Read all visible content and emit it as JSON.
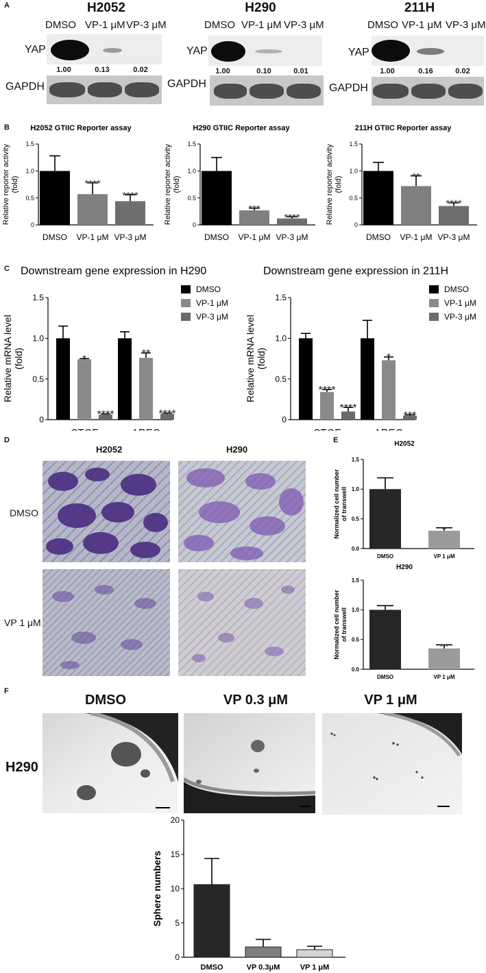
{
  "panels": {
    "A": "A",
    "B": "B",
    "C": "C",
    "D": "D",
    "E": "E",
    "F": "F"
  },
  "western_blot": {
    "blots": [
      {
        "cell_line": "H2052",
        "lanes": [
          "DMSO",
          "VP-1 μM",
          "VP-3 μM"
        ],
        "quant": [
          "1.00",
          "0.13",
          "0.02"
        ],
        "yap_levels": [
          1.0,
          0.13,
          0.02
        ]
      },
      {
        "cell_line": "H290",
        "lanes": [
          "DMSO",
          "VP-1 μM",
          "VP-3 μM"
        ],
        "quant": [
          "1.00",
          "0.10",
          "0.01"
        ],
        "yap_levels": [
          1.0,
          0.1,
          0.01
        ]
      },
      {
        "cell_line": "211H",
        "lanes": [
          "DMSO",
          "VP-1 μM",
          "VP-3 μM"
        ],
        "quant": [
          "1.00",
          "0.16",
          "0.02"
        ],
        "yap_levels": [
          1.0,
          0.16,
          0.02
        ]
      }
    ],
    "yap_label": "YAP",
    "gapdh_label": "GAPDH"
  },
  "chart_data": [
    {
      "type": "bar",
      "title": "H2052 GTIIC Reporter assay",
      "ylabel": "Relative reporter activity (fold)",
      "categories": [
        "DMSO",
        "VP-1 μM",
        "VP-3 μM"
      ],
      "values": [
        1.0,
        0.57,
        0.44
      ],
      "errors": [
        0.28,
        0.21,
        0.12
      ],
      "annotations": [
        "",
        "****",
        "****"
      ],
      "ylim": [
        0,
        1.5
      ],
      "yticks": [
        "0",
        "0.5",
        "1.0",
        "1.5"
      ],
      "colors": [
        "#000000",
        "#808080",
        "#6e6e6e"
      ]
    },
    {
      "type": "bar",
      "title": "H290 GTIIC Reporter assay",
      "ylabel": "Relative reporter activity (fold)",
      "categories": [
        "DMSO",
        "VP-1 μM",
        "VP-3 μM"
      ],
      "values": [
        1.0,
        0.27,
        0.12
      ],
      "errors": [
        0.25,
        0.04,
        0.03
      ],
      "annotations": [
        "",
        "***",
        "****"
      ],
      "ylim": [
        0,
        1.5
      ],
      "yticks": [
        "0",
        "0.5",
        "1.0",
        "1.5"
      ],
      "colors": [
        "#000000",
        "#808080",
        "#6e6e6e"
      ]
    },
    {
      "type": "bar",
      "title": "211H GTIIC Reporter assay",
      "ylabel": "Relative reporter activity (fold)",
      "categories": [
        "DMSO",
        "VP-1 μM",
        "VP-3 μM"
      ],
      "values": [
        1.0,
        0.72,
        0.35
      ],
      "errors": [
        0.16,
        0.19,
        0.06
      ],
      "annotations": [
        "",
        "**",
        "****"
      ],
      "ylim": [
        0,
        1.5
      ],
      "yticks": [
        "0",
        "0.5",
        "1.0",
        "1.5"
      ],
      "colors": [
        "#000000",
        "#808080",
        "#6e6e6e"
      ]
    },
    {
      "type": "bar",
      "title": "Downstream gene expression in H290",
      "ylabel": "Relative mRNA level (fold)",
      "categories": [
        "CTGF",
        "AREG"
      ],
      "series": [
        {
          "name": "DMSO",
          "values": [
            1.0,
            1.0
          ],
          "errors": [
            0.15,
            0.08
          ],
          "annotations": [
            "",
            ""
          ],
          "color": "#000000"
        },
        {
          "name": "VP-1 μM",
          "values": [
            0.74,
            0.76
          ],
          "errors": [
            0.01,
            0.06
          ],
          "annotations": [
            "*",
            "**"
          ],
          "color": "#8a8a8a"
        },
        {
          "name": "VP-3 μM",
          "values": [
            0.06,
            0.07
          ],
          "errors": [
            0.01,
            0.01
          ],
          "annotations": [
            "****",
            "****"
          ],
          "color": "#6a6a6a"
        }
      ],
      "ylim": [
        0,
        1.5
      ],
      "yticks": [
        "0",
        "0.5",
        "1.0",
        "1.5"
      ],
      "legend": "top-right"
    },
    {
      "type": "bar",
      "title": "Downstream gene expression in 211H",
      "ylabel": "Relative mRNA level (fold)",
      "categories": [
        "CTGF",
        "AREG"
      ],
      "series": [
        {
          "name": "DMSO",
          "values": [
            1.0,
            1.0
          ],
          "errors": [
            0.06,
            0.22
          ],
          "annotations": [
            "",
            ""
          ],
          "color": "#000000"
        },
        {
          "name": "VP-1 μM",
          "values": [
            0.34,
            0.73
          ],
          "errors": [
            0.03,
            0.04
          ],
          "annotations": [
            "****",
            "*"
          ],
          "color": "#8a8a8a"
        },
        {
          "name": "VP-3 μM",
          "values": [
            0.1,
            0.05
          ],
          "errors": [
            0.05,
            0.01
          ],
          "annotations": [
            "****",
            "***"
          ],
          "color": "#6a6a6a"
        }
      ],
      "ylim": [
        0,
        1.5
      ],
      "yticks": [
        "0",
        "0.5",
        "1.0",
        "1.5"
      ],
      "legend": "top-right"
    },
    {
      "type": "bar",
      "title": "H2052",
      "ylabel": "Normalized cell number of transwell",
      "categories": [
        "DMSO",
        "VP 1 μM"
      ],
      "values": [
        1.0,
        0.3
      ],
      "errors": [
        0.19,
        0.05
      ],
      "annotations": [
        "",
        "**"
      ],
      "ylim": [
        0,
        1.5
      ],
      "yticks": [
        "0.0",
        "0.5",
        "1.0",
        "1.5"
      ],
      "colors": [
        "#262626",
        "#9a9a9a"
      ]
    },
    {
      "type": "bar",
      "title": "H290",
      "ylabel": "Normalized cell number of transwell",
      "categories": [
        "DMSO",
        "VP 1 μM"
      ],
      "values": [
        1.0,
        0.35
      ],
      "errors": [
        0.07,
        0.06
      ],
      "annotations": [
        "",
        "***"
      ],
      "ylim": [
        0,
        1.5
      ],
      "yticks": [
        "0.0",
        "0.5",
        "1.0",
        "1.5"
      ],
      "colors": [
        "#262626",
        "#9a9a9a"
      ]
    },
    {
      "type": "bar",
      "title": "",
      "ylabel": "Sphere numbers",
      "categories": [
        "DMSO",
        "VP 0.3μM",
        "VP 1  μM"
      ],
      "values": [
        10.6,
        1.5,
        1.1
      ],
      "errors": [
        3.8,
        1.1,
        0.5
      ],
      "annotations": [
        "",
        "*",
        "*"
      ],
      "ylim": [
        0,
        20
      ],
      "yticks": [
        "0",
        "5",
        "10",
        "15",
        "20"
      ],
      "colors": [
        "#262626",
        "#7e7e7e",
        "#d4d4d4"
      ]
    }
  ],
  "transwell": {
    "columns": [
      "H2052",
      "H290"
    ],
    "rows": [
      "DMSO",
      "VP 1 μM"
    ]
  },
  "sphere": {
    "cell_line": "H290",
    "conditions": [
      "DMSO",
      "VP 0.3 μM",
      "VP 1 μM"
    ]
  }
}
